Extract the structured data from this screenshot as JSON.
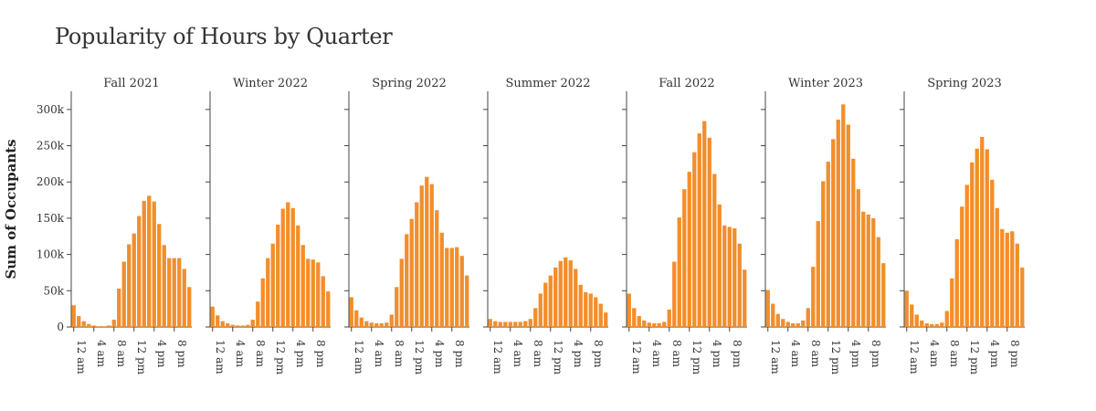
{
  "chart_data": {
    "type": "bar",
    "title": "Popularity of Hours by Quarter",
    "ylabel": "Sum of Occupants",
    "xlabel": "",
    "ylim": [
      0,
      325000
    ],
    "yticks": [
      0,
      50000,
      100000,
      150000,
      200000,
      250000,
      300000
    ],
    "ytick_labels": [
      "0",
      "50k",
      "100k",
      "150k",
      "200k",
      "250k",
      "300k"
    ],
    "x": [
      0,
      1,
      2,
      3,
      4,
      5,
      6,
      7,
      8,
      9,
      10,
      11,
      12,
      13,
      14,
      15,
      16,
      17,
      18,
      19,
      20,
      21,
      22,
      23
    ],
    "xticks": [
      0,
      4,
      8,
      12,
      16,
      20
    ],
    "xtick_labels": [
      "12 am",
      "4 am",
      "8 am",
      "12 pm",
      "4 pm",
      "8 pm"
    ],
    "bar_color": "#f28e2b",
    "grid": false,
    "series": [
      {
        "name": "Fall 2021",
        "values": [
          30000,
          15000,
          8000,
          4000,
          2000,
          1000,
          1000,
          2000,
          10000,
          53000,
          90000,
          114000,
          129000,
          153000,
          174000,
          181000,
          173000,
          142000,
          113000,
          95000,
          95000,
          95000,
          80000,
          55000
        ]
      },
      {
        "name": "Winter 2022",
        "values": [
          28000,
          16000,
          8000,
          5000,
          3000,
          2000,
          2000,
          3000,
          10000,
          35000,
          67000,
          95000,
          115000,
          141000,
          163000,
          172000,
          164000,
          140000,
          113000,
          94000,
          93000,
          89000,
          70000,
          49000
        ]
      },
      {
        "name": "Spring 2022",
        "values": [
          41000,
          23000,
          13000,
          8000,
          6000,
          5000,
          5000,
          6000,
          17000,
          55000,
          94000,
          128000,
          149000,
          172000,
          195000,
          207000,
          197000,
          161000,
          130000,
          109000,
          109000,
          110000,
          98000,
          71000
        ]
      },
      {
        "name": "Summer 2022",
        "values": [
          11000,
          8000,
          7000,
          7000,
          7000,
          7000,
          7000,
          8000,
          11000,
          26000,
          46000,
          61000,
          71000,
          82000,
          91000,
          96000,
          92000,
          80000,
          58000,
          48000,
          46000,
          41000,
          32000,
          20000
        ]
      },
      {
        "name": "Fall 2022",
        "values": [
          46000,
          26000,
          15000,
          9000,
          6000,
          5000,
          5000,
          7000,
          24000,
          90000,
          151000,
          190000,
          214000,
          241000,
          267000,
          284000,
          261000,
          211000,
          169000,
          140000,
          138000,
          136000,
          115000,
          79000
        ]
      },
      {
        "name": "Winter 2023",
        "values": [
          51000,
          32000,
          18000,
          11000,
          7000,
          5000,
          5000,
          9000,
          26000,
          83000,
          146000,
          201000,
          228000,
          259000,
          286000,
          307000,
          279000,
          232000,
          190000,
          159000,
          155000,
          150000,
          124000,
          88000
        ]
      },
      {
        "name": "Spring 2023",
        "values": [
          50000,
          31000,
          17000,
          9000,
          5000,
          4000,
          4000,
          6000,
          22000,
          67000,
          121000,
          166000,
          196000,
          227000,
          246000,
          262000,
          245000,
          203000,
          164000,
          135000,
          130000,
          132000,
          115000,
          82000
        ]
      }
    ]
  }
}
